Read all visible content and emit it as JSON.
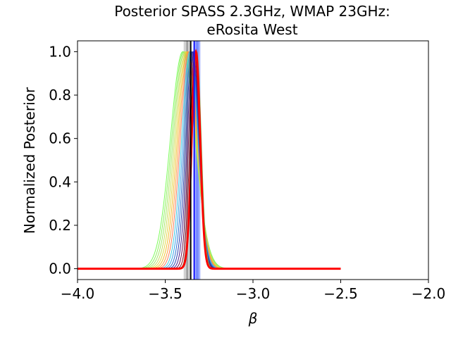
{
  "chart_data": {
    "type": "line",
    "title": "Posterior SPASS 2.3GHz, WMAP 23GHz:",
    "subtitle": "eRosita West",
    "xlabel": "β",
    "ylabel": "Normalized Posterior",
    "xlim": [
      -4.0,
      -2.0
    ],
    "ylim": [
      -0.05,
      1.05
    ],
    "xticks": [
      {
        "value": -4.0,
        "label": "−4.0"
      },
      {
        "value": -3.5,
        "label": "−3.5"
      },
      {
        "value": -3.0,
        "label": "−3.0"
      },
      {
        "value": -2.5,
        "label": "−2.5"
      },
      {
        "value": -2.0,
        "label": "−2.0"
      }
    ],
    "yticks": [
      {
        "value": 0.0,
        "label": "0.0"
      },
      {
        "value": 0.2,
        "label": "0.2"
      },
      {
        "value": 0.4,
        "label": "0.4"
      },
      {
        "value": 0.6,
        "label": "0.6"
      },
      {
        "value": 0.8,
        "label": "0.8"
      },
      {
        "value": 1.0,
        "label": "1.0"
      }
    ],
    "grid": false,
    "series_x_range": [
      -4.0,
      -2.5
    ],
    "series": [
      {
        "peak": -3.4,
        "sigma": 0.07,
        "color": "#7cfc5a"
      },
      {
        "peak": -3.395,
        "sigma": 0.067,
        "color": "#90f060"
      },
      {
        "peak": -3.39,
        "sigma": 0.064,
        "color": "#a6e86a"
      },
      {
        "peak": -3.385,
        "sigma": 0.061,
        "color": "#c8e060"
      },
      {
        "peak": -3.38,
        "sigma": 0.058,
        "color": "#e2d84a"
      },
      {
        "peak": -3.375,
        "sigma": 0.055,
        "color": "#f0c030"
      },
      {
        "peak": -3.37,
        "sigma": 0.052,
        "color": "#ffa040"
      },
      {
        "peak": -3.365,
        "sigma": 0.049,
        "color": "#ff7a5a"
      },
      {
        "peak": -3.36,
        "sigma": 0.046,
        "color": "#40c8e0"
      },
      {
        "peak": -3.355,
        "sigma": 0.043,
        "color": "#3aa0e8"
      },
      {
        "peak": -3.35,
        "sigma": 0.04,
        "color": "#3070d0"
      },
      {
        "peak": -3.345,
        "sigma": 0.037,
        "color": "#2a40b0"
      },
      {
        "peak": -3.34,
        "sigma": 0.034,
        "color": "#4a2090"
      },
      {
        "peak": -3.335,
        "sigma": 0.031,
        "color": "#701050"
      },
      {
        "peak": -3.33,
        "sigma": 0.028,
        "color": "#900820"
      },
      {
        "peak": -3.325,
        "sigma": 0.026,
        "color": "#30a050"
      },
      {
        "peak": -3.32,
        "sigma": 0.025,
        "color": "#60d060"
      },
      {
        "peak": -3.325,
        "sigma": 0.024,
        "color": "#ff0000",
        "width": 3
      }
    ],
    "bands": [
      {
        "x0": -3.395,
        "x1": -3.36,
        "color": "#000000",
        "opacity": 0.18
      },
      {
        "x0": -3.38,
        "x1": -3.37,
        "color": "#000000",
        "opacity": 0.25
      },
      {
        "x0": -3.335,
        "x1": -3.3,
        "color": "#2040ff",
        "opacity": 0.4
      },
      {
        "x0": -3.325,
        "x1": -3.31,
        "color": "#2040ff",
        "opacity": 0.35
      }
    ],
    "vlines": [
      {
        "x": -3.355,
        "color": "#000000",
        "width": 2
      },
      {
        "x": -3.335,
        "color": "#1010ff",
        "width": 2
      }
    ]
  }
}
